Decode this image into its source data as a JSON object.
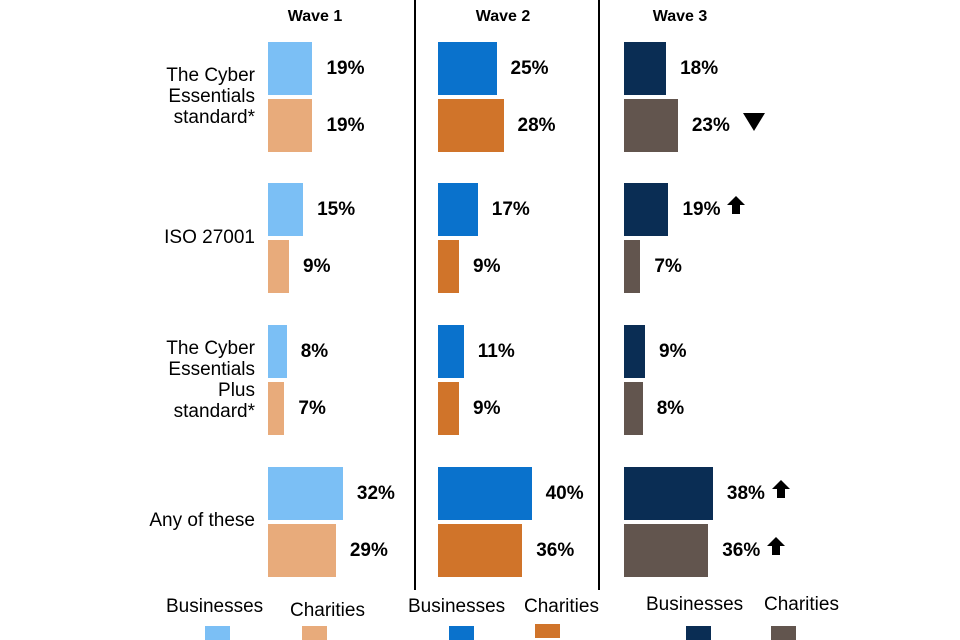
{
  "chart_data": {
    "type": "bar",
    "orientation": "horizontal",
    "categories": [
      "The Cyber Essentials standard*",
      "ISO 27001",
      "The Cyber Essentials Plus standard*",
      "Any of these"
    ],
    "waves": [
      {
        "title": "Wave 1",
        "series": [
          {
            "name": "Businesses",
            "color": "#7bbff5",
            "values": [
              19,
              15,
              8,
              32
            ],
            "markers": [
              null,
              null,
              null,
              null
            ]
          },
          {
            "name": "Charities",
            "color": "#e8ab7b",
            "values": [
              19,
              9,
              7,
              29
            ],
            "markers": [
              null,
              null,
              null,
              null
            ]
          }
        ]
      },
      {
        "title": "Wave 2",
        "series": [
          {
            "name": "Businesses",
            "color": "#0a72cc",
            "values": [
              25,
              17,
              11,
              40
            ],
            "markers": [
              null,
              null,
              null,
              null
            ]
          },
          {
            "name": "Charities",
            "color": "#d0742a",
            "values": [
              28,
              9,
              9,
              36
            ],
            "markers": [
              null,
              null,
              null,
              null
            ]
          }
        ]
      },
      {
        "title": "Wave 3",
        "series": [
          {
            "name": "Businesses",
            "color": "#0a2d54",
            "values": [
              18,
              19,
              9,
              38
            ],
            "markers": [
              null,
              "up",
              null,
              "up"
            ]
          },
          {
            "name": "Charities",
            "color": "#62554e",
            "values": [
              23,
              7,
              8,
              36
            ],
            "markers": [
              "down",
              null,
              null,
              "up"
            ]
          }
        ]
      }
    ],
    "value_suffix": "%"
  },
  "category_labels": [
    "The Cyber\nEssentials\nstandard*",
    "ISO 27001",
    "The Cyber\nEssentials\nPlus\nstandard*",
    "Any of these"
  ]
}
